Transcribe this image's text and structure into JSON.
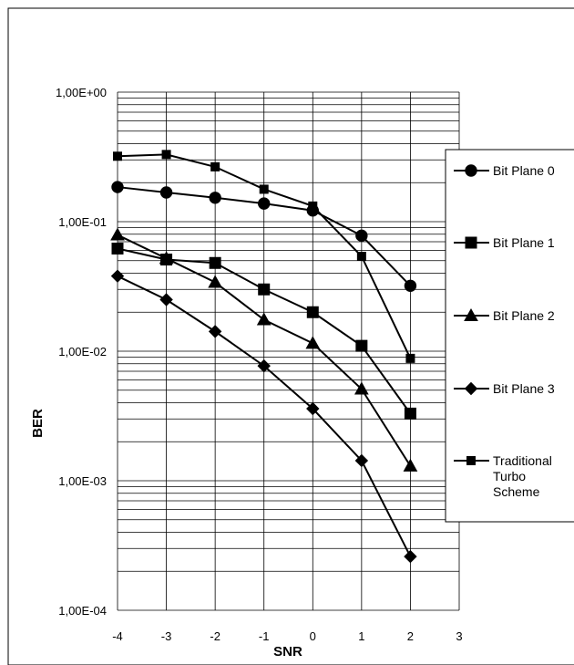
{
  "chart_data": {
    "type": "line",
    "title": "",
    "xlabel": "SNR",
    "ylabel": "BER",
    "y_scale": "log",
    "xlim": [
      -4,
      3
    ],
    "ylim": [
      0.0001,
      1
    ],
    "x_ticks": [
      "-4",
      "-3",
      "-2",
      "-1",
      "0",
      "1",
      "2",
      "3"
    ],
    "y_ticks": [
      "1,00E+00",
      "1,00E-01",
      "1,00E-02",
      "1,00E-03",
      "1,00E-04"
    ],
    "grid": true,
    "legend_position": "right",
    "x": [
      -4,
      -3,
      -2,
      -1,
      0,
      1,
      2
    ],
    "series": [
      {
        "name": "Bit Plane 0",
        "marker": "circle",
        "values": [
          0.185,
          0.168,
          0.153,
          0.138,
          0.122,
          0.078,
          0.032
        ]
      },
      {
        "name": "Bit Plane 1",
        "marker": "square",
        "values": [
          0.062,
          0.051,
          0.048,
          0.03,
          0.02,
          0.011,
          0.0033
        ]
      },
      {
        "name": "Bit Plane 2",
        "marker": "triangle",
        "values": [
          0.079,
          0.052,
          0.034,
          0.0175,
          0.0115,
          0.0051,
          0.0013
        ]
      },
      {
        "name": "Bit Plane 3",
        "marker": "diamond",
        "values": [
          0.038,
          0.025,
          0.0142,
          0.0077,
          0.0036,
          0.00143,
          0.00026
        ]
      },
      {
        "name": "Traditional Turbo Scheme",
        "marker": "small-square",
        "values": [
          0.32,
          0.33,
          0.265,
          0.178,
          0.132,
          0.054,
          0.0088
        ]
      }
    ]
  }
}
